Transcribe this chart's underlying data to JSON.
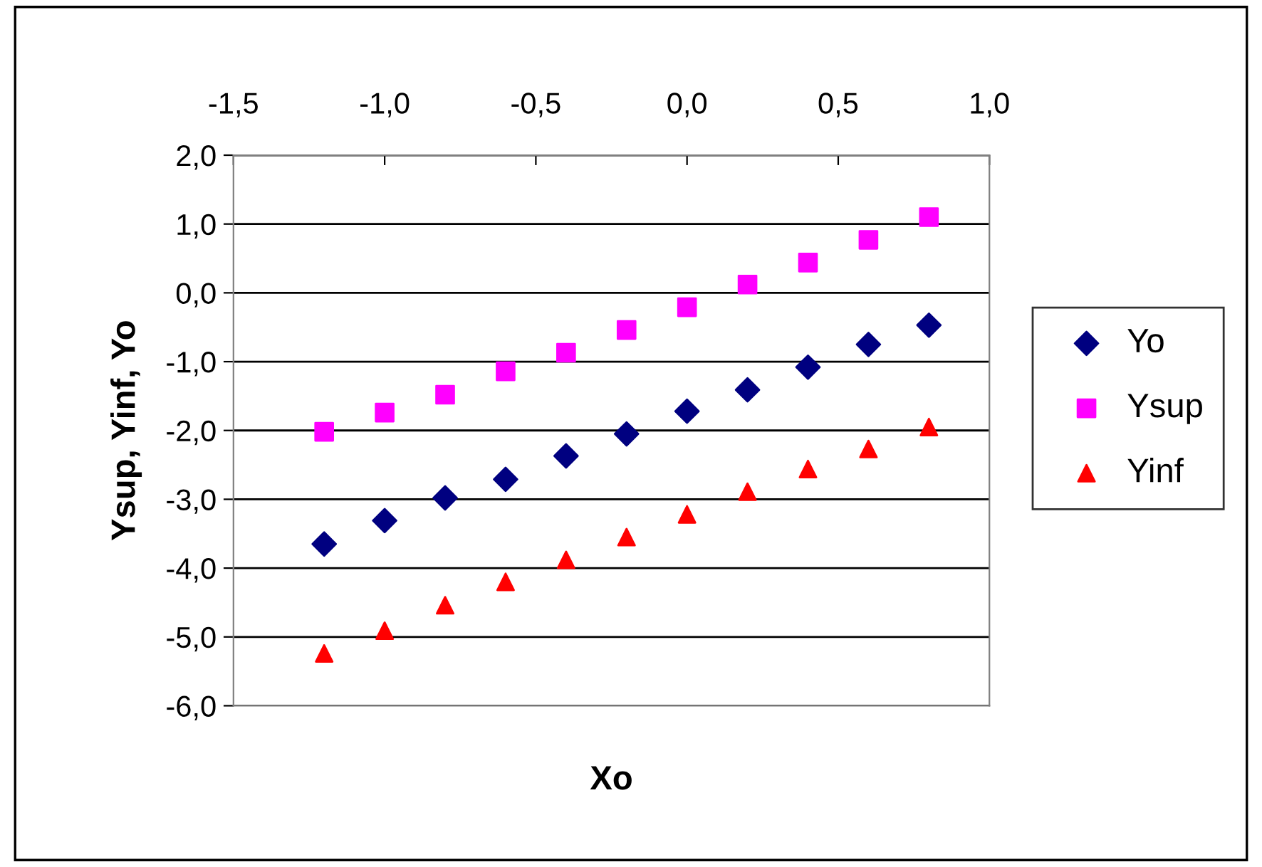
{
  "chart_data": {
    "type": "scatter",
    "xlabel": "Xo",
    "ylabel": "Ysup, Yinf, Yo",
    "x": [
      -1.2,
      -1.0,
      -0.8,
      -0.6,
      -0.4,
      -0.2,
      0.0,
      0.2,
      0.4,
      0.6,
      0.8
    ],
    "series": [
      {
        "name": "Yo",
        "color": "#000080",
        "marker": "diamond",
        "values": [
          -3.65,
          -3.31,
          -2.98,
          -2.71,
          -2.37,
          -2.05,
          -1.72,
          -1.41,
          -1.08,
          -0.75,
          -0.47
        ]
      },
      {
        "name": "Ysup",
        "color": "#ff00ff",
        "marker": "square",
        "values": [
          -2.02,
          -1.74,
          -1.48,
          -1.14,
          -0.87,
          -0.54,
          -0.21,
          0.12,
          0.44,
          0.77,
          1.1
        ]
      },
      {
        "name": "Yinf",
        "color": "#ff0000",
        "marker": "triangle",
        "values": [
          -5.24,
          -4.91,
          -4.54,
          -4.2,
          -3.88,
          -3.55,
          -3.22,
          -2.89,
          -2.56,
          -2.27,
          -1.95
        ]
      }
    ],
    "xlim": [
      -1.5,
      1.0
    ],
    "xticks": [
      {
        "value": -1.5,
        "label": "-1,5"
      },
      {
        "value": -1.0,
        "label": "-1,0"
      },
      {
        "value": -0.5,
        "label": "-0,5"
      },
      {
        "value": 0.0,
        "label": "0,0"
      },
      {
        "value": 0.5,
        "label": "0,5"
      },
      {
        "value": 1.0,
        "label": "1,0"
      }
    ],
    "ylim": [
      -6,
      2
    ],
    "yticks": [
      {
        "value": -6,
        "label": "-6,0"
      },
      {
        "value": -5,
        "label": "-5,0"
      },
      {
        "value": -4,
        "label": "-4,0"
      },
      {
        "value": -3,
        "label": "-3,0"
      },
      {
        "value": -2,
        "label": "-2,0"
      },
      {
        "value": -1,
        "label": "-1,0"
      },
      {
        "value": 0,
        "label": "0,0"
      },
      {
        "value": 1,
        "label": "1,0"
      },
      {
        "value": 2,
        "label": "2,0"
      }
    ],
    "grid": "y",
    "legend": "right"
  }
}
